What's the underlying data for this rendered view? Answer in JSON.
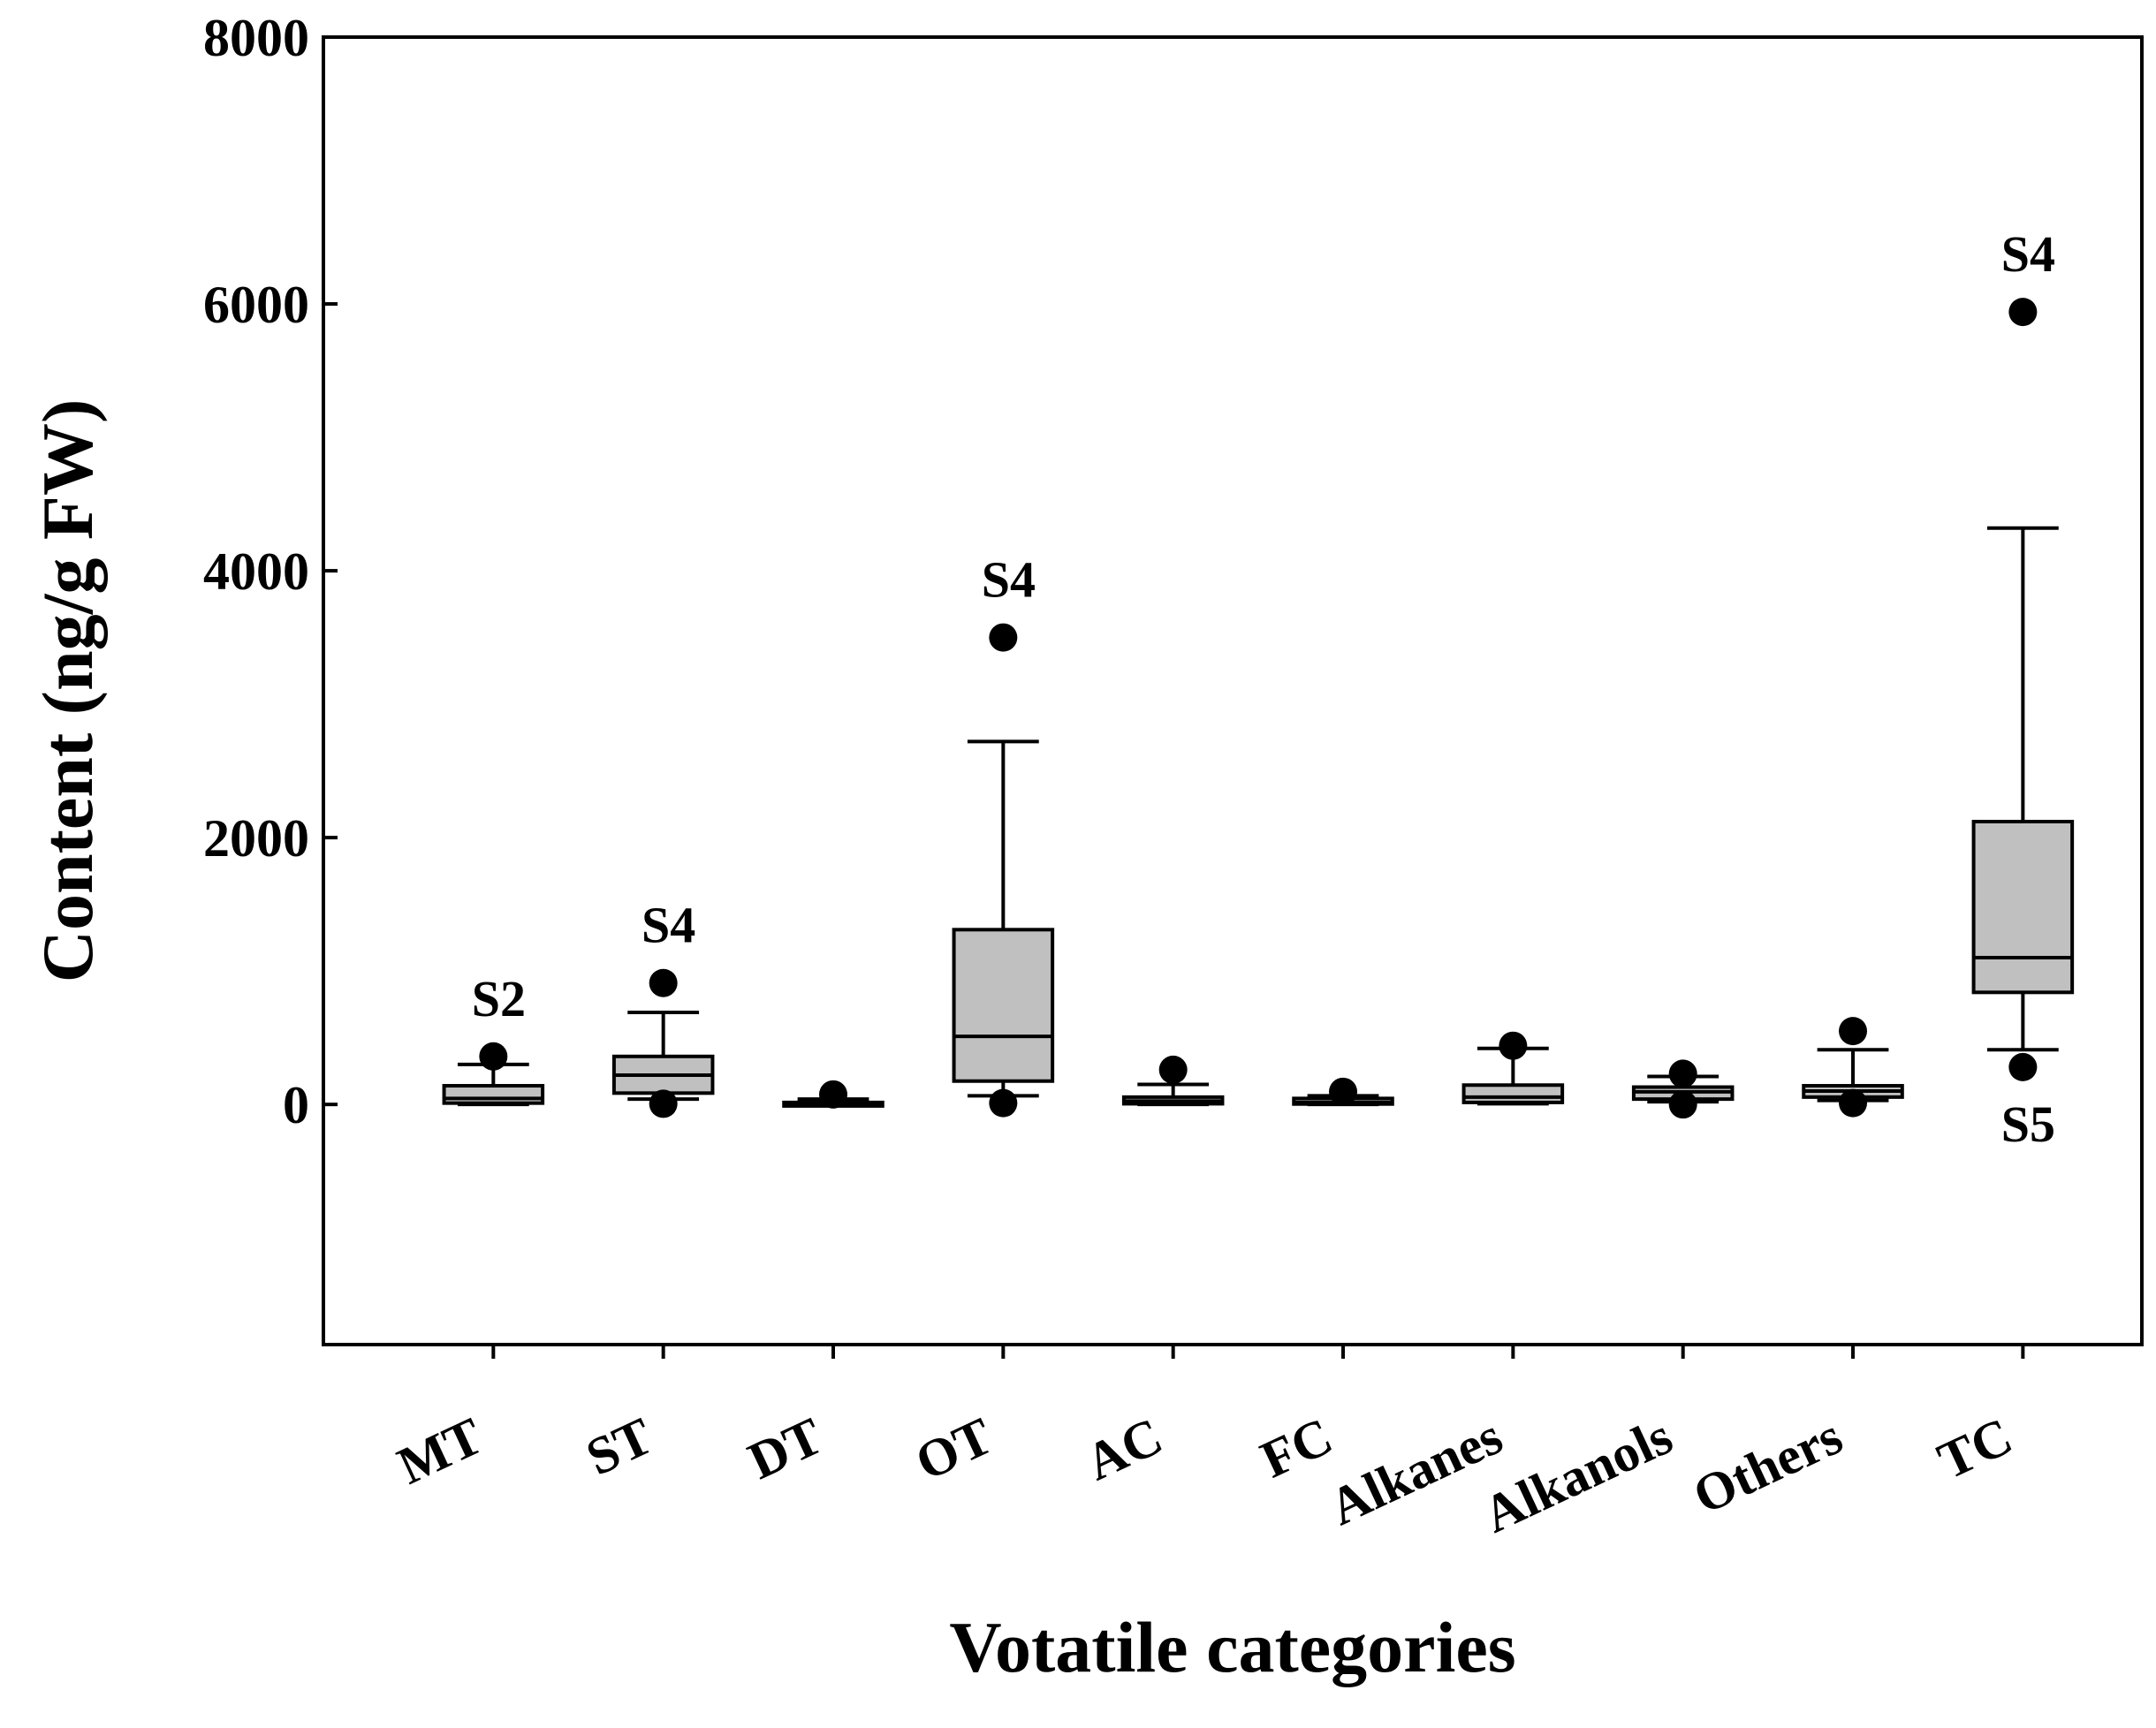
{
  "chart_data": {
    "type": "box",
    "title": "",
    "xlabel": "Votatile categories",
    "ylabel": "Content (ng/g FW)",
    "ylim": [
      -1800,
      8000
    ],
    "yticks": [
      0,
      2000,
      4000,
      6000,
      8000
    ],
    "ytick_labels": [
      "0",
      "2000",
      "4000",
      "6000",
      "8000"
    ],
    "colors": {
      "box_fill": "#c0c0c0",
      "line": "#000000",
      "background": "#ffffff"
    },
    "categories": [
      "MT",
      "ST",
      "DT",
      "OT",
      "AC",
      "FC",
      "Alkanes",
      "Alkanols",
      "Others",
      "TC"
    ],
    "boxes": [
      {
        "name": "MT",
        "whisker_low": 0,
        "q1": 10,
        "median": 45,
        "q3": 140,
        "whisker_high": 300,
        "outliers": [
          360
        ]
      },
      {
        "name": "ST",
        "whisker_low": 40,
        "q1": 85,
        "median": 220,
        "q3": 360,
        "whisker_high": 690,
        "outliers": [
          910,
          5
        ]
      },
      {
        "name": "DT",
        "whisker_low": -5,
        "q1": -2,
        "median": 5,
        "q3": 15,
        "whisker_high": 40,
        "outliers": [
          75
        ]
      },
      {
        "name": "OT",
        "whisker_low": 65,
        "q1": 175,
        "median": 510,
        "q3": 1310,
        "whisker_high": 2720,
        "outliers": [
          3500,
          10
        ]
      },
      {
        "name": "AC",
        "whisker_low": 0,
        "q1": 5,
        "median": 25,
        "q3": 55,
        "whisker_high": 150,
        "outliers": [
          260
        ]
      },
      {
        "name": "FC",
        "whisker_low": 0,
        "q1": 3,
        "median": 15,
        "q3": 45,
        "whisker_high": 65,
        "outliers": [
          95
        ]
      },
      {
        "name": "Alkanes",
        "whisker_low": 5,
        "q1": 15,
        "median": 55,
        "q3": 145,
        "whisker_high": 420,
        "outliers": [
          440
        ]
      },
      {
        "name": "Alkanols",
        "whisker_low": 20,
        "q1": 40,
        "median": 95,
        "q3": 130,
        "whisker_high": 210,
        "outliers": [
          230,
          0
        ]
      },
      {
        "name": "Others",
        "whisker_low": 30,
        "q1": 55,
        "median": 100,
        "q3": 140,
        "whisker_high": 410,
        "outliers": [
          550,
          10
        ]
      },
      {
        "name": "TC",
        "whisker_low": 410,
        "q1": 840,
        "median": 1100,
        "q3": 2120,
        "whisker_high": 4320,
        "outliers": [
          5940,
          280
        ]
      }
    ],
    "annotations": [
      {
        "text": "S2",
        "category": "MT",
        "position": "above"
      },
      {
        "text": "S4",
        "category": "ST",
        "position": "above"
      },
      {
        "text": "S4",
        "category": "OT",
        "position": "above"
      },
      {
        "text": "S4",
        "category": "TC",
        "position": "above"
      },
      {
        "text": "S5",
        "category": "TC",
        "position": "below"
      }
    ]
  }
}
